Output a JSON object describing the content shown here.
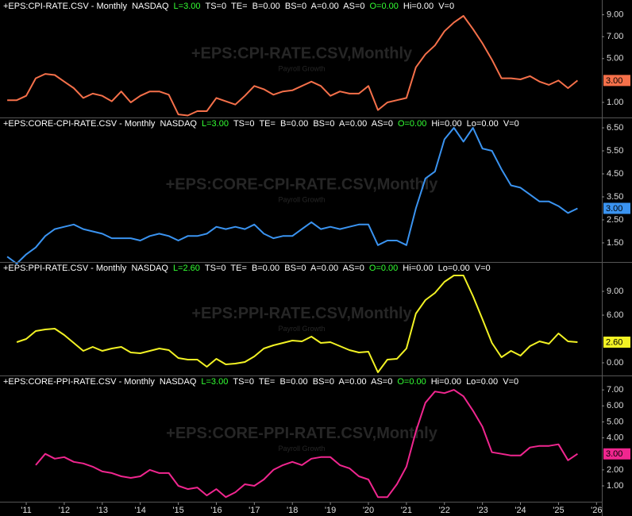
{
  "chart_data": [
    {
      "type": "line",
      "header": [
        {
          "text": "+EPS:CPI-RATE.CSV - Monthly  NASDAQ",
          "color": "#ffffff"
        },
        {
          "text": "L=3.00",
          "color": "#33ff33"
        },
        {
          "text": "TS=0  TE=  B=0.00  BS=0  A=0.00  AS=0",
          "color": "#ffffff"
        },
        {
          "text": "O=0.00",
          "color": "#33ff33"
        },
        {
          "text": "Hi=0.00  V=0",
          "color": "#ffffff"
        }
      ],
      "watermark": "+EPS:CPI-RATE.CSV,Monthly",
      "watermark_sub": "Payroll Growth",
      "last_label": "3.00",
      "color": "#f5704a",
      "x": [
        2010.5,
        2010.75,
        2011,
        2011.25,
        2011.5,
        2011.75,
        2012,
        2012.25,
        2012.5,
        2012.75,
        2013,
        2013.25,
        2013.5,
        2013.75,
        2014,
        2014.25,
        2014.5,
        2014.75,
        2015,
        2015.25,
        2015.5,
        2015.75,
        2016,
        2016.25,
        2016.5,
        2016.75,
        2017,
        2017.25,
        2017.5,
        2017.75,
        2018,
        2018.25,
        2018.5,
        2018.75,
        2019,
        2019.25,
        2019.5,
        2019.75,
        2020,
        2020.25,
        2020.5,
        2020.75,
        2021,
        2021.25,
        2021.5,
        2021.75,
        2022,
        2022.25,
        2022.5,
        2022.75,
        2023,
        2023.25,
        2023.5,
        2023.75,
        2024,
        2024.25,
        2024.5,
        2024.75,
        2025,
        2025.25,
        2025.5
      ],
      "values": [
        1.2,
        1.2,
        1.6,
        3.2,
        3.6,
        3.5,
        2.9,
        2.3,
        1.4,
        1.8,
        1.6,
        1.1,
        2.0,
        1.0,
        1.6,
        2.0,
        2.0,
        1.7,
        -0.1,
        -0.2,
        0.2,
        0.2,
        1.4,
        1.1,
        0.8,
        1.6,
        2.5,
        2.2,
        1.7,
        2.0,
        2.1,
        2.5,
        2.9,
        2.5,
        1.6,
        2.0,
        1.8,
        1.8,
        2.5,
        0.3,
        1.0,
        1.2,
        1.4,
        4.2,
        5.4,
        6.2,
        7.5,
        8.3,
        8.9,
        7.7,
        6.4,
        4.9,
        3.2,
        3.2,
        3.1,
        3.4,
        2.9,
        2.6,
        3.0,
        2.3,
        3.0
      ],
      "xlim": [
        2010.31,
        2026.14
      ],
      "ylim": [
        -0.38,
        10.35
      ],
      "yticks": [
        {
          "value": 1,
          "label": "1.00"
        },
        {
          "value": 5,
          "label": "5.00"
        },
        {
          "value": 7,
          "label": "7.00"
        },
        {
          "value": 9,
          "label": "9.00"
        }
      ]
    },
    {
      "type": "line",
      "header": [
        {
          "text": "+EPS:CORE-CPI-RATE.CSV - Monthly  NASDAQ",
          "color": "#ffffff"
        },
        {
          "text": "L=3.00",
          "color": "#33ff33"
        },
        {
          "text": "TS=0  TE=  B=0.00  BS=0  A=0.00  AS=0",
          "color": "#ffffff"
        },
        {
          "text": "O=0.00",
          "color": "#33ff33"
        },
        {
          "text": "Hi=0.00  Lo=0.00  V=0",
          "color": "#ffffff"
        }
      ],
      "watermark": "+EPS:CORE-CPI-RATE.CSV,Monthly",
      "watermark_sub": "Payroll Growth",
      "last_label": "3.00",
      "color": "#3a93f0",
      "x": [
        2010.5,
        2010.75,
        2011,
        2011.25,
        2011.5,
        2011.75,
        2012,
        2012.25,
        2012.5,
        2012.75,
        2013,
        2013.25,
        2013.5,
        2013.75,
        2014,
        2014.25,
        2014.5,
        2014.75,
        2015,
        2015.25,
        2015.5,
        2015.75,
        2016,
        2016.25,
        2016.5,
        2016.75,
        2017,
        2017.25,
        2017.5,
        2017.75,
        2018,
        2018.25,
        2018.5,
        2018.75,
        2019,
        2019.25,
        2019.5,
        2019.75,
        2020,
        2020.25,
        2020.5,
        2020.75,
        2021,
        2021.25,
        2021.5,
        2021.75,
        2022,
        2022.25,
        2022.5,
        2022.75,
        2023,
        2023.25,
        2023.5,
        2023.75,
        2024,
        2024.25,
        2024.5,
        2024.75,
        2025,
        2025.25,
        2025.5
      ],
      "values": [
        0.9,
        0.6,
        1.0,
        1.3,
        1.8,
        2.1,
        2.2,
        2.3,
        2.1,
        2.0,
        1.9,
        1.7,
        1.7,
        1.7,
        1.6,
        1.8,
        1.9,
        1.8,
        1.6,
        1.8,
        1.8,
        1.9,
        2.2,
        2.1,
        2.2,
        2.1,
        2.3,
        1.9,
        1.7,
        1.8,
        1.8,
        2.1,
        2.4,
        2.1,
        2.2,
        2.1,
        2.2,
        2.3,
        2.3,
        1.4,
        1.6,
        1.6,
        1.4,
        3.0,
        4.3,
        4.6,
        6.0,
        6.5,
        5.9,
        6.5,
        5.6,
        5.5,
        4.7,
        4.0,
        3.9,
        3.6,
        3.3,
        3.3,
        3.1,
        2.8,
        3.0
      ],
      "xlim": [
        2010.31,
        2026.14
      ],
      "ylim": [
        0.67,
        6.95
      ],
      "yticks": [
        {
          "value": 1.5,
          "label": "1.50"
        },
        {
          "value": 2.5,
          "label": "2.50"
        },
        {
          "value": 3.5,
          "label": "3.50"
        },
        {
          "value": 4.5,
          "label": "4.50"
        },
        {
          "value": 5.5,
          "label": "5.50"
        },
        {
          "value": 6.5,
          "label": "6.50"
        }
      ]
    },
    {
      "type": "line",
      "header": [
        {
          "text": "+EPS:PPI-RATE.CSV - Monthly  NASDAQ",
          "color": "#ffffff"
        },
        {
          "text": "L=2.60",
          "color": "#33ff33"
        },
        {
          "text": "TS=0  TE=  B=0.00  BS=0  A=0.00  AS=0",
          "color": "#ffffff"
        },
        {
          "text": "O=0.00",
          "color": "#33ff33"
        },
        {
          "text": "Hi=0.00  Lo=0.00  V=0",
          "color": "#ffffff"
        }
      ],
      "watermark": "+EPS:PPI-RATE.CSV,Monthly",
      "watermark_sub": "Payroll Growth",
      "last_label": "2.60",
      "color": "#f2f224",
      "x": [
        2010.5,
        2010.75,
        2011,
        2011.25,
        2011.5,
        2011.75,
        2012,
        2012.25,
        2012.5,
        2012.75,
        2013,
        2013.25,
        2013.5,
        2013.75,
        2014,
        2014.25,
        2014.5,
        2014.75,
        2015,
        2015.25,
        2015.5,
        2015.75,
        2016,
        2016.25,
        2016.5,
        2016.75,
        2017,
        2017.25,
        2017.5,
        2017.75,
        2018,
        2018.25,
        2018.5,
        2018.75,
        2019,
        2019.25,
        2019.5,
        2019.75,
        2020,
        2020.25,
        2020.5,
        2020.75,
        2021,
        2021.25,
        2021.5,
        2021.75,
        2022,
        2022.25,
        2022.5,
        2022.75,
        2023,
        2023.25,
        2023.5,
        2023.75,
        2024,
        2024.25,
        2024.5,
        2024.75,
        2025,
        2025.25,
        2025.5
      ],
      "values": [
        null,
        2.6,
        3.0,
        4.0,
        4.2,
        4.3,
        3.5,
        2.5,
        1.5,
        2.0,
        1.5,
        1.8,
        2.0,
        1.3,
        1.2,
        1.5,
        1.8,
        1.6,
        0.6,
        0.4,
        0.4,
        -0.5,
        0.5,
        -0.2,
        -0.1,
        0.1,
        0.8,
        1.8,
        2.2,
        2.5,
        2.8,
        2.7,
        3.3,
        2.5,
        2.6,
        2.1,
        1.6,
        1.3,
        1.4,
        -1.2,
        0.4,
        0.5,
        1.8,
        6.2,
        7.9,
        8.8,
        10.2,
        11.0,
        11.0,
        8.4,
        5.5,
        2.5,
        0.7,
        1.5,
        0.9,
        2.1,
        2.7,
        2.4,
        3.7,
        2.7,
        2.6
      ],
      "xlim": [
        2010.31,
        2026.14
      ],
      "ylim": [
        -1.6,
        12.7
      ],
      "yticks": [
        {
          "value": 0,
          "label": "0.00"
        },
        {
          "value": 6,
          "label": "6.00"
        },
        {
          "value": 9,
          "label": "9.00"
        }
      ]
    },
    {
      "type": "line",
      "header": [
        {
          "text": "+EPS:CORE-PPI-RATE.CSV - Monthly  NASDAQ",
          "color": "#ffffff"
        },
        {
          "text": "L=3.00",
          "color": "#33ff33"
        },
        {
          "text": "TS=0  TE=  B=0.00  BS=0  A=0.00  AS=0",
          "color": "#ffffff"
        },
        {
          "text": "O=0.00",
          "color": "#33ff33"
        },
        {
          "text": "Hi=0.00  Lo=0.00  V=0",
          "color": "#ffffff"
        }
      ],
      "watermark": "+EPS:CORE-PPI-RATE.CSV,Monthly",
      "watermark_sub": "Payroll Growth",
      "last_label": "3.00",
      "color": "#f0268f",
      "x": [
        2010.5,
        2010.75,
        2011,
        2011.25,
        2011.5,
        2011.75,
        2012,
        2012.25,
        2012.5,
        2012.75,
        2013,
        2013.25,
        2013.5,
        2013.75,
        2014,
        2014.25,
        2014.5,
        2014.75,
        2015,
        2015.25,
        2015.5,
        2015.75,
        2016,
        2016.25,
        2016.5,
        2016.75,
        2017,
        2017.25,
        2017.5,
        2017.75,
        2018,
        2018.25,
        2018.5,
        2018.75,
        2019,
        2019.25,
        2019.5,
        2019.75,
        2020,
        2020.25,
        2020.5,
        2020.75,
        2021,
        2021.25,
        2021.5,
        2021.75,
        2022,
        2022.25,
        2022.5,
        2022.75,
        2023,
        2023.25,
        2023.5,
        2023.75,
        2024,
        2024.25,
        2024.5,
        2024.75,
        2025,
        2025.25,
        2025.5
      ],
      "values": [
        null,
        null,
        null,
        2.3,
        3.0,
        2.7,
        2.8,
        2.5,
        2.4,
        2.2,
        1.9,
        1.8,
        1.6,
        1.5,
        1.6,
        2.0,
        1.8,
        1.8,
        1.0,
        0.8,
        0.9,
        0.4,
        0.8,
        0.3,
        0.6,
        1.1,
        1.0,
        1.4,
        2.0,
        2.3,
        2.5,
        2.3,
        2.7,
        2.8,
        2.8,
        2.3,
        2.1,
        1.6,
        1.4,
        0.3,
        0.3,
        1.1,
        2.2,
        4.4,
        6.2,
        6.9,
        6.8,
        7.0,
        6.6,
        5.7,
        4.7,
        3.1,
        3.0,
        2.9,
        2.9,
        3.4,
        3.5,
        3.5,
        3.6,
        2.6,
        3.0
      ],
      "xlim": [
        2010.31,
        2026.14
      ],
      "ylim": [
        0.01,
        7.9
      ],
      "yticks": [
        {
          "value": 1,
          "label": "1.00"
        },
        {
          "value": 2,
          "label": "2.00"
        },
        {
          "value": 4,
          "label": "4.00"
        },
        {
          "value": 5,
          "label": "5.00"
        },
        {
          "value": 6,
          "label": "6.00"
        },
        {
          "value": 7,
          "label": "7.00"
        }
      ],
      "xticks": [
        {
          "value": 2011,
          "label": "'11"
        },
        {
          "value": 2012,
          "label": "'12"
        },
        {
          "value": 2013,
          "label": "'13"
        },
        {
          "value": 2014,
          "label": "'14"
        },
        {
          "value": 2015,
          "label": "'15"
        },
        {
          "value": 2016,
          "label": "'16"
        },
        {
          "value": 2017,
          "label": "'17"
        },
        {
          "value": 2018,
          "label": "'18"
        },
        {
          "value": 2019,
          "label": "'19"
        },
        {
          "value": 2020,
          "label": "'20"
        },
        {
          "value": 2021,
          "label": "'21"
        },
        {
          "value": 2022,
          "label": "'22"
        },
        {
          "value": 2023,
          "label": "'23"
        },
        {
          "value": 2024,
          "label": "'24"
        },
        {
          "value": 2025,
          "label": "'25"
        },
        {
          "value": 2026,
          "label": "'26"
        }
      ]
    }
  ]
}
